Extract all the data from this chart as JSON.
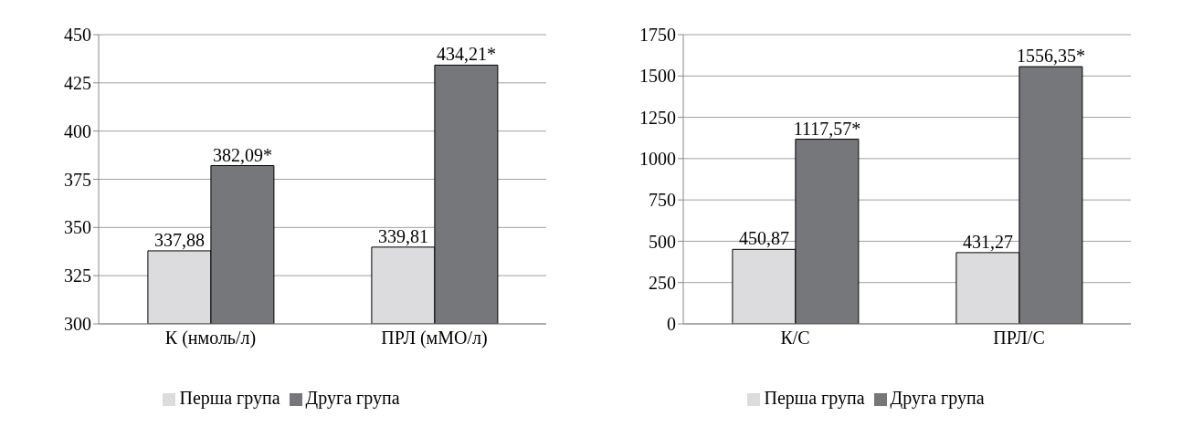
{
  "chart_data": [
    {
      "type": "bar",
      "categories": [
        "К (нмоль/л)",
        "ПРЛ (мМО/л)"
      ],
      "series": [
        {
          "name": "Перша група",
          "color": "#dcdcde",
          "values": [
            337.88,
            339.81
          ],
          "value_labels": [
            "337,88",
            "339,81"
          ]
        },
        {
          "name": "Друга група",
          "color": "#76777b",
          "values": [
            382.09,
            434.21
          ],
          "value_labels": [
            "382,09*",
            "434,21*"
          ]
        }
      ],
      "ylim": [
        300,
        450
      ],
      "yticks": [
        300,
        325,
        350,
        375,
        400,
        425,
        450
      ],
      "grid": "y",
      "legend": "bottom"
    },
    {
      "type": "bar",
      "categories": [
        "К/С",
        "ПРЛ/С"
      ],
      "series": [
        {
          "name": "Перша група",
          "color": "#dcdcde",
          "values": [
            450.87,
            431.27
          ],
          "value_labels": [
            "450,87",
            "431,27"
          ]
        },
        {
          "name": "Друга група",
          "color": "#76777b",
          "values": [
            1117.57,
            1556.35
          ],
          "value_labels": [
            "1117,57*",
            "1556,35*"
          ]
        }
      ],
      "ylim": [
        0,
        1750
      ],
      "yticks": [
        0,
        250,
        500,
        750,
        1000,
        1250,
        1500,
        1750
      ],
      "grid": "y",
      "legend": "bottom"
    }
  ]
}
